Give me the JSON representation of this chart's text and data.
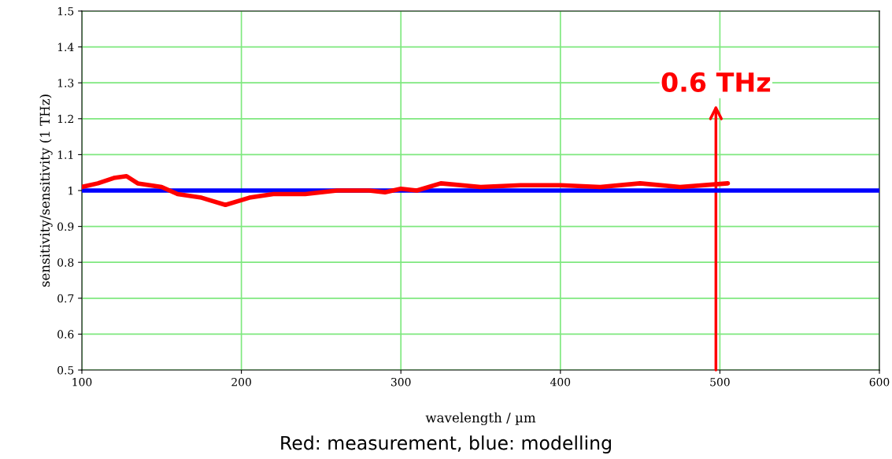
{
  "chart_data": {
    "type": "line",
    "xlabel": "wavelength / µm",
    "ylabel": "sensitivity/sensitivity (1 THz)",
    "xlim": [
      100,
      600
    ],
    "ylim": [
      0.5,
      1.5
    ],
    "xticks": [
      100,
      200,
      300,
      400,
      500,
      600
    ],
    "yticks": [
      0.5,
      0.6,
      0.7,
      0.8,
      0.9,
      1,
      1.1,
      1.2,
      1.3,
      1.4,
      1.5
    ],
    "grid": true,
    "series": [
      {
        "color": "#ff0000",
        "x": [
          100,
          110,
          120,
          128,
          135,
          150,
          160,
          175,
          190,
          205,
          220,
          240,
          260,
          280,
          290,
          300,
          310,
          325,
          350,
          375,
          400,
          425,
          450,
          475,
          505
        ],
        "values": [
          1.01,
          1.02,
          1.035,
          1.04,
          1.02,
          1.01,
          0.99,
          0.98,
          0.96,
          0.98,
          0.99,
          0.99,
          1.0,
          1.0,
          0.995,
          1.005,
          1.0,
          1.02,
          1.01,
          1.015,
          1.015,
          1.01,
          1.02,
          1.01,
          1.02
        ]
      },
      {
        "color": "#0000ff",
        "x": [
          100,
          600
        ],
        "values": [
          1,
          1
        ]
      }
    ],
    "annotations": [
      "0.6 THz",
      "Red: measurement, blue: modelling"
    ]
  }
}
